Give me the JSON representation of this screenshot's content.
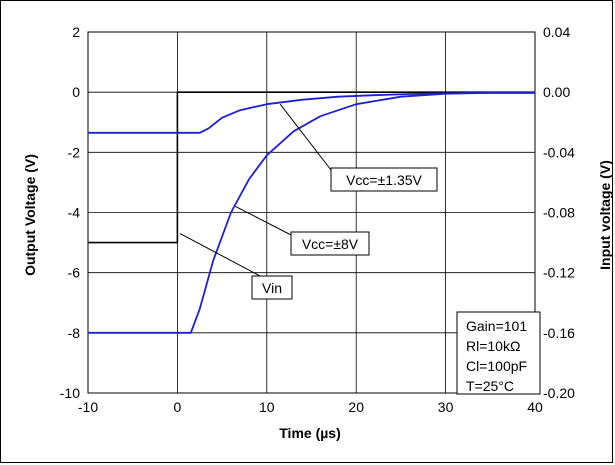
{
  "chart_data": {
    "type": "line",
    "xlabel": "Time (µs)",
    "ylabel_left": "Output Voltage (V)",
    "ylabel_right": "Input voltage (V)",
    "xlim": [
      -10,
      40
    ],
    "ylim_left": [
      -10,
      2
    ],
    "ylim_right": [
      -0.2,
      0.04
    ],
    "x_ticks": [
      "-10",
      "0",
      "10",
      "20",
      "30",
      "40"
    ],
    "y_left_ticks": [
      "2",
      "0",
      "-2",
      "-4",
      "-6",
      "-8",
      "-10"
    ],
    "y_right_ticks": [
      "0.04",
      "0.00",
      "-0.04",
      "-0.08",
      "-0.12",
      "-0.16",
      "-0.20"
    ],
    "grid": true,
    "series": [
      {
        "name": "Vin",
        "axis": "left",
        "color": "#000000",
        "x": [
          -10,
          0,
          0,
          40
        ],
        "y": [
          -5.0,
          -5.0,
          0.0,
          0.0
        ]
      },
      {
        "name": "Vcc=±1.35V",
        "axis": "left",
        "color": "#1f1fd6",
        "x": [
          -10,
          2.5,
          3.5,
          5,
          7,
          10,
          14,
          18,
          22,
          26,
          30,
          35,
          40
        ],
        "y": [
          -1.35,
          -1.35,
          -1.2,
          -0.85,
          -0.6,
          -0.4,
          -0.25,
          -0.15,
          -0.1,
          -0.06,
          -0.04,
          -0.02,
          -0.02
        ]
      },
      {
        "name": "Vcc=±8V",
        "axis": "left",
        "color": "#1f1fd6",
        "x": [
          -10,
          1.5,
          2.5,
          4,
          6,
          8,
          10,
          13,
          16,
          20,
          25,
          30,
          35,
          40
        ],
        "y": [
          -8.0,
          -8.0,
          -7.2,
          -5.6,
          -4.0,
          -2.9,
          -2.1,
          -1.3,
          -0.8,
          -0.4,
          -0.15,
          -0.05,
          -0.02,
          -0.02
        ]
      }
    ],
    "annotations": [
      {
        "id": "vcc135",
        "text": "Vcc=±1.35V",
        "points_to": [
          11.5,
          -0.4
        ]
      },
      {
        "id": "vcc8",
        "text": "Vcc=±8V",
        "points_to": [
          6.5,
          -3.8
        ]
      },
      {
        "id": "vin",
        "text": "Vin",
        "points_to": [
          0.3,
          -4.7
        ]
      }
    ],
    "info_box": [
      "Gain=101",
      "Rl=10kΩ",
      "Cl=100pF",
      "T=25°C"
    ]
  }
}
